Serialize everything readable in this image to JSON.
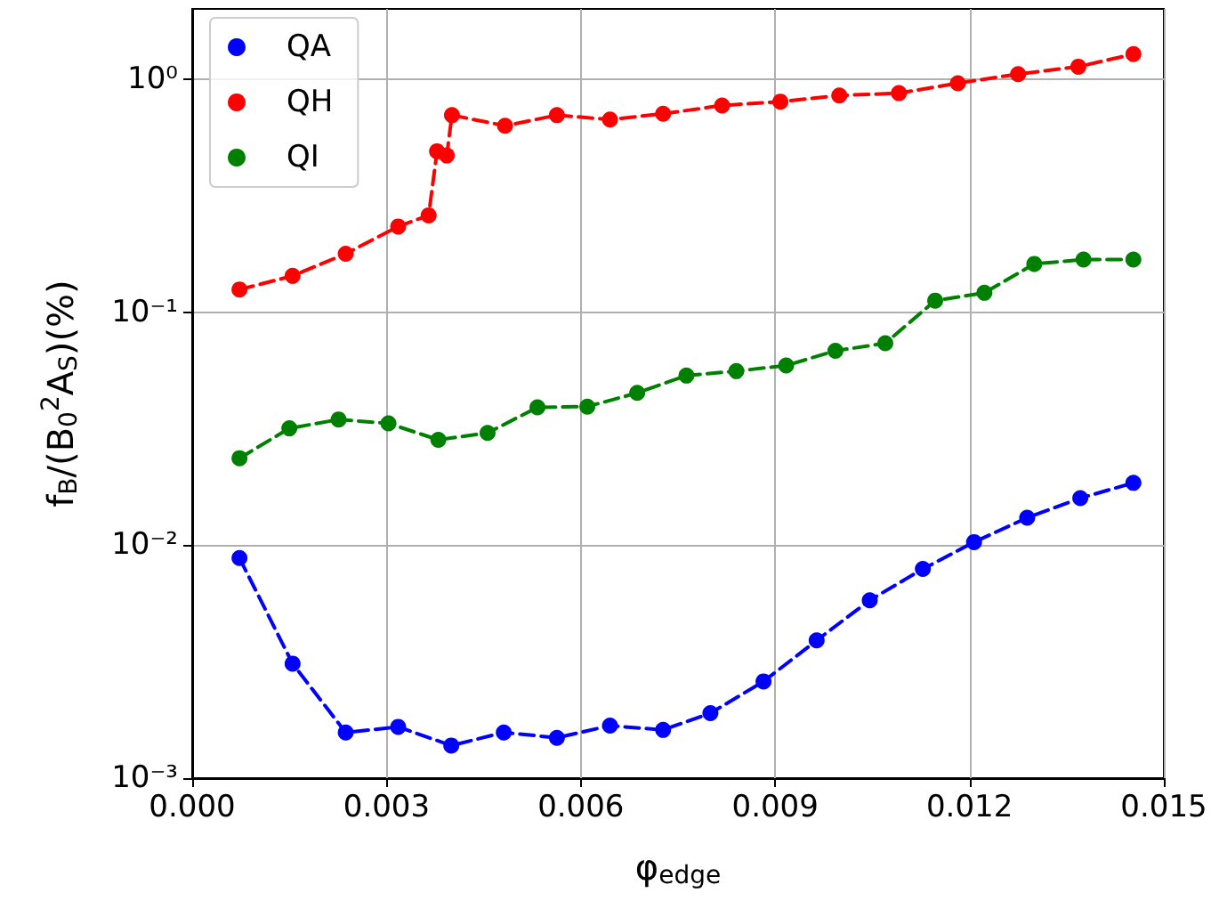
{
  "chart_data": {
    "type": "line",
    "xlabel": "φ$_{edge}$",
    "ylabel": "f$_{B}$/(B$_{0}$$^{2}$A$_{S}$)(%)",
    "xlim": [
      0,
      0.015
    ],
    "xticks": [
      {
        "value": 0,
        "label": "0.000"
      },
      {
        "value": 0.003,
        "label": "0.003"
      },
      {
        "value": 0.006,
        "label": "0.006"
      },
      {
        "value": 0.009,
        "label": "0.009"
      },
      {
        "value": 0.012,
        "label": "0.012"
      },
      {
        "value": 0.015,
        "label": "0.015"
      }
    ],
    "ylim": [
      0.001,
      2
    ],
    "yticks": [
      {
        "value": 0.001,
        "label": "10⁻³"
      },
      {
        "value": 0.01,
        "label": "10⁻²"
      },
      {
        "value": 0.1,
        "label": "10⁻¹"
      },
      {
        "value": 1,
        "label": "10⁰"
      }
    ],
    "log": "y",
    "grid": true,
    "legend": "top left",
    "marker": "circle",
    "line_style": "dashed",
    "series": [
      {
        "name": "QA",
        "color": "#0000ff",
        "x": [
          0.00073,
          0.00155,
          0.00237,
          0.00318,
          0.004,
          0.00481,
          0.00563,
          0.00645,
          0.00727,
          0.008,
          0.00882,
          0.00964,
          0.01046,
          0.01128,
          0.01207,
          0.01289,
          0.01371,
          0.01453
        ],
        "values": [
          0.0088,
          0.0031,
          0.00157,
          0.00166,
          0.00138,
          0.00157,
          0.00149,
          0.00168,
          0.00161,
          0.0019,
          0.0026,
          0.0039,
          0.0058,
          0.0079,
          0.0103,
          0.0131,
          0.0159,
          0.0185
        ]
      },
      {
        "name": "QH",
        "color": "#ff0000",
        "x": [
          0.00073,
          0.00155,
          0.00237,
          0.00318,
          0.00365,
          0.00378,
          0.00393,
          0.00401,
          0.00483,
          0.00563,
          0.00645,
          0.00727,
          0.00818,
          0.00908,
          0.00999,
          0.01091,
          0.01182,
          0.01275,
          0.01368,
          0.01453
        ],
        "values": [
          0.125,
          0.143,
          0.178,
          0.233,
          0.26,
          0.49,
          0.47,
          0.7,
          0.63,
          0.7,
          0.67,
          0.71,
          0.77,
          0.8,
          0.85,
          0.87,
          0.96,
          1.05,
          1.13,
          1.28
        ]
      },
      {
        "name": "QI",
        "color": "#008000",
        "x": [
          0.00073,
          0.0015,
          0.00226,
          0.00303,
          0.0038,
          0.00456,
          0.00533,
          0.0061,
          0.00687,
          0.00763,
          0.0084,
          0.00917,
          0.00993,
          0.0107,
          0.01147,
          0.01223,
          0.013,
          0.01376,
          0.01453
        ],
        "values": [
          0.0236,
          0.0317,
          0.0346,
          0.0333,
          0.0283,
          0.0303,
          0.039,
          0.0393,
          0.045,
          0.0534,
          0.0558,
          0.059,
          0.0682,
          0.0735,
          0.112,
          0.121,
          0.161,
          0.168,
          0.168
        ]
      }
    ]
  }
}
